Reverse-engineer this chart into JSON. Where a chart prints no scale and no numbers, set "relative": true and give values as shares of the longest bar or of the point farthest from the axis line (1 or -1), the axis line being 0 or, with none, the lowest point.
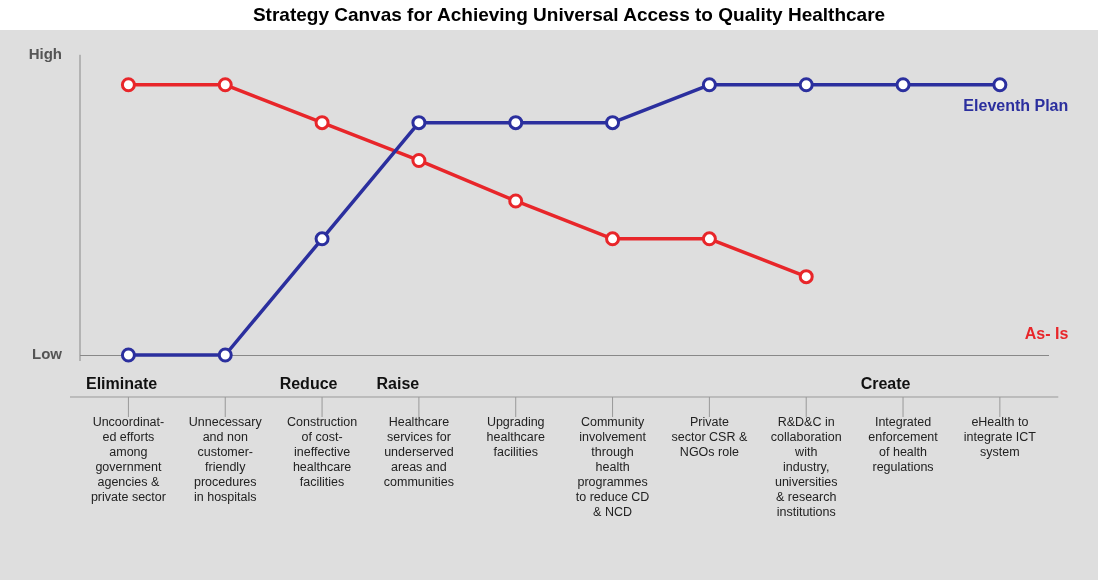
{
  "chart_data": {
    "type": "line",
    "title": "Strategy Canvas for Achieving Universal Access to Quality Healthcare",
    "categories": [
      "Uncoordinat-\ned efforts\namong\ngovernment\nagencies &\nprivate sector",
      "Unnecessary\nand non\ncustomer-\nfriendly\nprocedures\nin hospitals",
      "Construction\nof cost-\nineffective\nhealthcare\nfacilities",
      "Healthcare\nservices for\nunderserved\nareas and\ncommunities",
      "Upgrading\nhealthcare\nfacilities",
      "Community\ninvolvement\nthrough\nhealth\nprogrammes\nto reduce CD\n& NCD",
      "Private\nsector CSR &\nNGOs role",
      "R&D&C in\ncollaboration\nwith\nindustry,\nuniversities\n& research\ninstitutions",
      "Integrated\nenforcement\nof health\nregulations",
      "eHealth to\nintegrate ICT\nsystem"
    ],
    "series": [
      {
        "name": "Eleventh Plan",
        "color": "#2b2f9e",
        "values": [
          0,
          0,
          0.43,
          0.86,
          0.86,
          0.86,
          1,
          1,
          1,
          1
        ]
      },
      {
        "name": "As- Is",
        "color": "#e8262a",
        "values": [
          1,
          1,
          0.86,
          0.72,
          0.57,
          0.43,
          0.43,
          0.29,
          null,
          null
        ]
      }
    ],
    "relative": true,
    "annotations": [
      "High",
      "Low",
      "Eliminate",
      "Reduce",
      "Raise",
      "Create"
    ],
    "grid": false,
    "legend": false,
    "marker": "circle",
    "line_style": "solid"
  }
}
